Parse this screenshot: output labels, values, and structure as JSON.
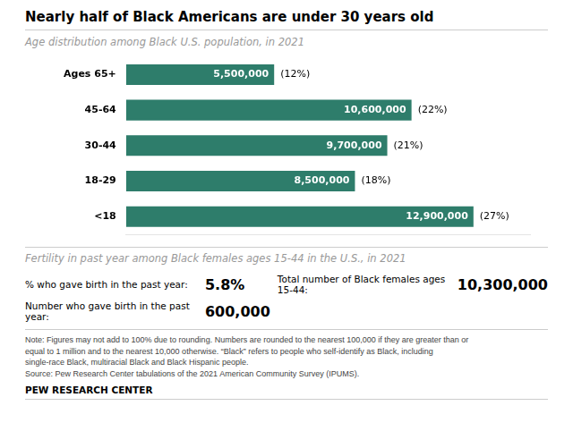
{
  "chart_data": {
    "type": "bar",
    "orientation": "horizontal",
    "title": "Nearly half of Black Americans are under 30 years old",
    "subtitle": "Age distribution among Black U.S. population, in 2021",
    "categories": [
      "Ages 65+",
      "45-64",
      "30-44",
      "18-29",
      "<18"
    ],
    "values": [
      5500000,
      10600000,
      9700000,
      8500000,
      12900000
    ],
    "value_labels": [
      "5,500,000",
      "10,600,000",
      "9,700,000",
      "8,500,000",
      "12,900,000"
    ],
    "percent_labels": [
      "(12%)",
      "(22%)",
      "(21%)",
      "(18%)",
      "(27%)"
    ],
    "color": "#2e7d6b",
    "xlim": [
      0,
      15000000
    ],
    "xticks": [],
    "grid": false,
    "data_labels": true,
    "tick_labels": "y",
    "annotations": {
      "section_title": "Fertility in past year among Black females ages 15-44 in the U.S., in 2021",
      "stats": [
        {
          "label": "% who gave birth in the past year:",
          "value": "5.8%"
        },
        {
          "label": "Total number of Black females ages 15-44:",
          "value": "10,300,000"
        },
        {
          "label": "Number who gave birth in the past year:",
          "value": "600,000"
        }
      ],
      "note": [
        "Note: Figures may not add to 100% due to rounding. Numbers are rounded to the nearest 100,000 if they are greater than or",
        "equal to 1 million and to the nearest 10,000 otherwise. “Black” refers to people who self-identify as Black, including",
        "single-race Black, multiracial Black and Black Hispanic people.",
        "Source: Pew Research Center tabulations of the 2021 American Community Survey (IPUMS)."
      ],
      "footer": "PEW RESEARCH CENTER"
    }
  }
}
